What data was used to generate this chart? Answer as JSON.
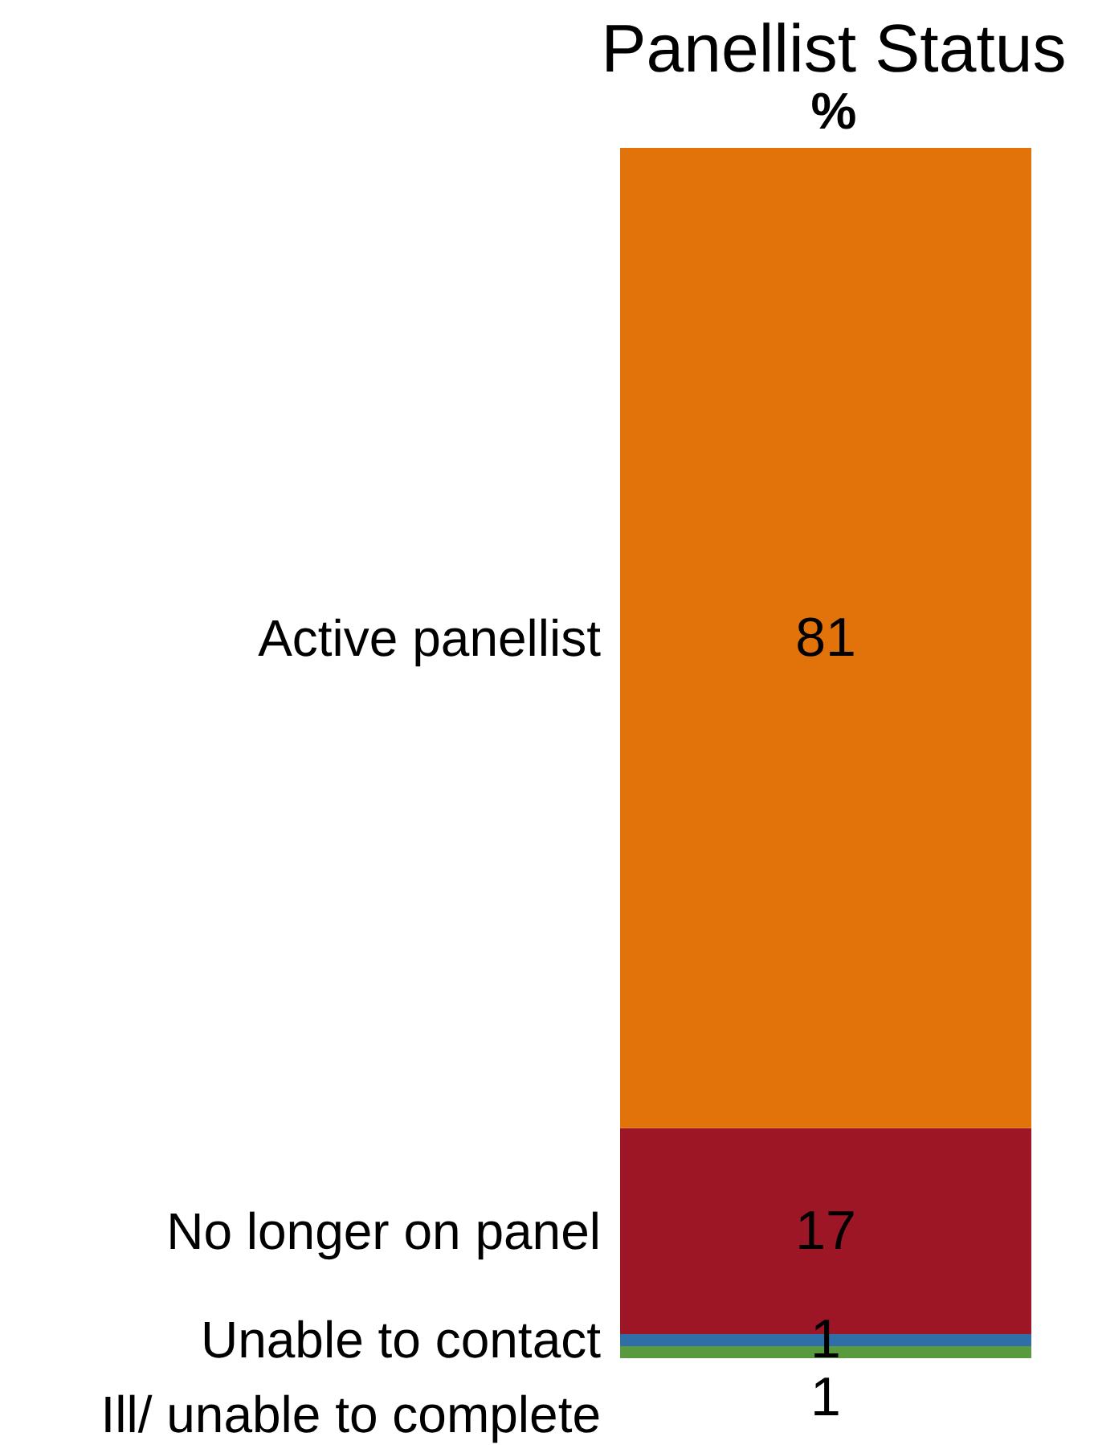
{
  "chart_data": {
    "type": "bar",
    "title": "Panellist Status",
    "subtitle": "%",
    "categories": [
      null
    ],
    "stacked": true,
    "data_labels": true,
    "tick_labels": false,
    "series": [
      {
        "name": "Ill/ unable to complete",
        "color": "#5a9a3e",
        "values": [
          1
        ]
      },
      {
        "name": "Unable to contact",
        "color": "#2f6ea6",
        "values": [
          1
        ]
      },
      {
        "name": "No longer on panel",
        "color": "#9c1626",
        "values": [
          17
        ]
      },
      {
        "name": "Active panellist",
        "color": "#e2720a",
        "values": [
          81
        ]
      }
    ]
  }
}
